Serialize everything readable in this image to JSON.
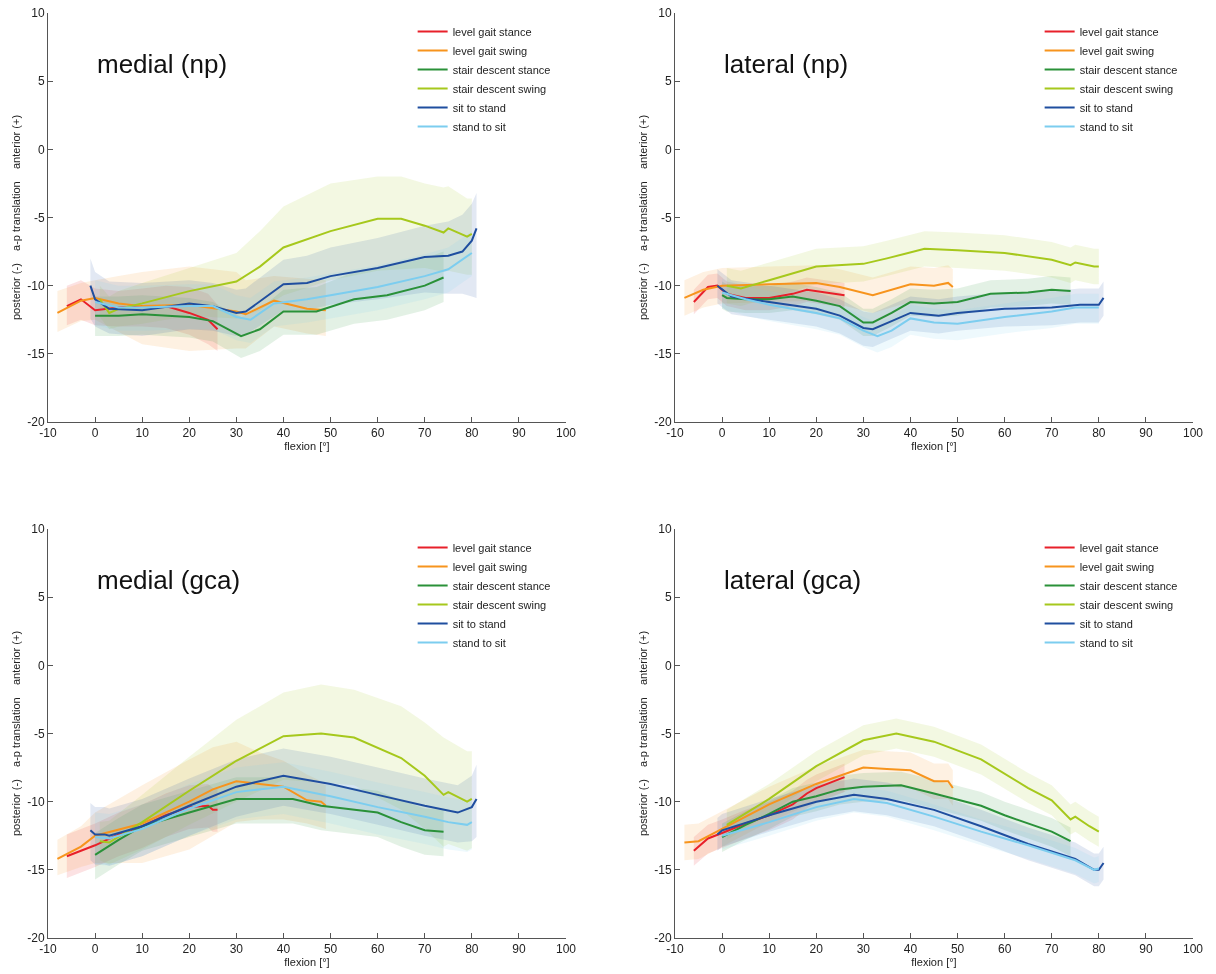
{
  "chart_data": [
    {
      "type": "line",
      "title": "medial (np)",
      "xlabel": "flexion [°]",
      "ylabel": "posterior (-)    a-p translation    anterior (+)",
      "xlim": [
        -10,
        100
      ],
      "xticks": [
        -10,
        0,
        10,
        20,
        30,
        40,
        50,
        60,
        70,
        80,
        90,
        100
      ],
      "ylim": [
        -20,
        10
      ],
      "yticks": [
        -20,
        -15,
        -10,
        -5,
        0,
        5,
        10
      ],
      "grid": false,
      "legend": "top right",
      "marker": "none",
      "line_style": "solid",
      "series": [
        {
          "name": "level gait stance",
          "color": "#e8202a",
          "x": [
            -6,
            -3,
            0,
            5,
            10,
            15,
            20,
            24,
            26
          ],
          "values": [
            -11.5,
            -11.0,
            -11.8,
            -11.6,
            -11.5,
            -11.5,
            -12.0,
            -12.5,
            -13.2
          ],
          "upper": [
            -10.0,
            -9.6,
            -10.2,
            -10.4,
            -10.2,
            -10.0,
            -10.1,
            -10.6,
            -11.4
          ],
          "lower": [
            -12.9,
            -12.5,
            -12.9,
            -13.0,
            -13.0,
            -13.1,
            -13.6,
            -14.3,
            -14.8
          ]
        },
        {
          "name": "level gait swing",
          "color": "#f7941d",
          "x": [
            -8,
            -3,
            0,
            5,
            10,
            20,
            30,
            32,
            38,
            45,
            49
          ],
          "values": [
            -12.0,
            -11.1,
            -10.9,
            -11.3,
            -11.5,
            -11.4,
            -11.9,
            -12.1,
            -11.1,
            -11.7,
            -11.8
          ],
          "upper": [
            -10.4,
            -9.8,
            -9.6,
            -9.3,
            -9.0,
            -8.6,
            -9.0,
            -9.6,
            -9.3,
            -9.5,
            -9.6
          ],
          "lower": [
            -13.4,
            -12.6,
            -12.5,
            -13.4,
            -14.3,
            -14.8,
            -14.6,
            -14.6,
            -13.0,
            -13.5,
            -13.7
          ]
        },
        {
          "name": "stair descent stance",
          "color": "#2a9139",
          "x": [
            0,
            5,
            10,
            20,
            25,
            31,
            35,
            40,
            47,
            55,
            62,
            70,
            74
          ],
          "values": [
            -12.2,
            -12.2,
            -12.1,
            -12.3,
            -12.6,
            -13.7,
            -13.2,
            -11.9,
            -11.9,
            -11.0,
            -10.7,
            -10.0,
            -9.4
          ],
          "upper": [
            -10.8,
            -10.8,
            -10.7,
            -10.9,
            -11.2,
            -12.3,
            -11.7,
            -10.3,
            -10.1,
            -9.0,
            -8.6,
            -8.0,
            -7.5
          ],
          "lower": [
            -13.7,
            -13.7,
            -13.6,
            -13.8,
            -14.1,
            -15.3,
            -14.8,
            -13.6,
            -13.6,
            -12.8,
            -12.5,
            -11.8,
            -11.2
          ]
        },
        {
          "name": "stair descent swing",
          "color": "#a6c81c",
          "x": [
            1,
            3,
            5,
            10,
            20,
            30,
            35,
            40,
            50,
            60,
            65,
            70,
            74,
            75,
            79,
            80
          ],
          "values": [
            -11.0,
            -12.0,
            -11.7,
            -11.3,
            -10.4,
            -9.7,
            -8.6,
            -7.2,
            -6.0,
            -5.1,
            -5.1,
            -5.6,
            -6.1,
            -5.8,
            -6.4,
            -6.2
          ],
          "upper": [
            -10.0,
            -10.8,
            -10.4,
            -9.8,
            -8.7,
            -7.6,
            -6.0,
            -4.2,
            -2.5,
            -2.0,
            -2.0,
            -2.5,
            -2.8,
            -2.7,
            -3.6,
            -3.6
          ],
          "lower": [
            -12.3,
            -13.2,
            -13.0,
            -12.8,
            -12.2,
            -12.4,
            -11.8,
            -10.7,
            -9.6,
            -8.9,
            -8.8,
            -8.7,
            -9.0,
            -8.9,
            -9.2,
            -9.2
          ]
        },
        {
          "name": "sit to stand",
          "color": "#1f4e9f",
          "x": [
            -1,
            0,
            3,
            10,
            20,
            25,
            30,
            32,
            40,
            45,
            50,
            60,
            70,
            75,
            78,
            80,
            81
          ],
          "values": [
            -10.0,
            -11.0,
            -11.7,
            -11.8,
            -11.3,
            -11.5,
            -12.0,
            -11.9,
            -9.9,
            -9.8,
            -9.3,
            -8.7,
            -7.9,
            -7.8,
            -7.5,
            -6.7,
            -5.8
          ],
          "upper": [
            -8.0,
            -9.0,
            -9.7,
            -9.8,
            -9.6,
            -9.8,
            -10.3,
            -10.2,
            -8.1,
            -7.8,
            -7.2,
            -6.5,
            -5.6,
            -5.3,
            -4.8,
            -4.0,
            -3.2
          ],
          "lower": [
            -12.4,
            -13.0,
            -13.5,
            -13.7,
            -13.2,
            -13.3,
            -13.7,
            -13.6,
            -11.8,
            -11.8,
            -11.4,
            -11.0,
            -10.5,
            -10.6,
            -10.6,
            -10.8,
            -10.9
          ]
        },
        {
          "name": "stand to sit",
          "color": "#7ccdef",
          "x": [
            0,
            5,
            10,
            20,
            25,
            30,
            33,
            38,
            45,
            50,
            60,
            70,
            75,
            80
          ],
          "values": [
            -11.2,
            -11.6,
            -11.6,
            -11.5,
            -11.5,
            -12.3,
            -12.5,
            -11.3,
            -11.0,
            -10.7,
            -10.1,
            -9.3,
            -8.8,
            -7.6
          ],
          "upper": [
            -9.6,
            -10.0,
            -10.0,
            -9.9,
            -9.9,
            -10.7,
            -10.9,
            -9.7,
            -9.4,
            -9.1,
            -8.5,
            -7.7,
            -7.2,
            -6.0
          ],
          "lower": [
            -12.9,
            -13.3,
            -13.3,
            -13.2,
            -13.2,
            -14.0,
            -14.2,
            -13.0,
            -12.7,
            -12.4,
            -11.8,
            -11.0,
            -10.5,
            -9.3
          ]
        }
      ]
    },
    {
      "type": "line",
      "title": "lateral (np)",
      "xlabel": "flexion [°]",
      "ylabel": "posterior (-)    a-p translation    anterior (+)",
      "xlim": [
        -10,
        100
      ],
      "xticks": [
        -10,
        0,
        10,
        20,
        30,
        40,
        50,
        60,
        70,
        80,
        90,
        100
      ],
      "ylim": [
        -20,
        10
      ],
      "yticks": [
        -20,
        -15,
        -10,
        -5,
        0,
        5,
        10
      ],
      "grid": false,
      "legend": "top right",
      "marker": "none",
      "line_style": "solid",
      "series": [
        {
          "name": "level gait stance",
          "color": "#e8202a",
          "x": [
            -6,
            -3,
            -1,
            1,
            5,
            10,
            15,
            18,
            22,
            26
          ],
          "values": [
            -11.2,
            -10.1,
            -10.0,
            -10.6,
            -10.9,
            -10.9,
            -10.6,
            -10.3,
            -10.5,
            -10.7
          ],
          "upper": [
            -10.3,
            -9.2,
            -9.1,
            -9.7,
            -10.0,
            -10.0,
            -9.7,
            -9.4,
            -9.6,
            -9.8
          ],
          "lower": [
            -12.1,
            -11.0,
            -10.9,
            -11.5,
            -11.8,
            -11.8,
            -11.5,
            -11.2,
            -11.4,
            -11.6
          ]
        },
        {
          "name": "level gait swing",
          "color": "#f7941d",
          "x": [
            -8,
            -4,
            0,
            10,
            20,
            25,
            32,
            40,
            45,
            48,
            49
          ],
          "values": [
            -10.9,
            -10.3,
            -10.0,
            -9.9,
            -9.8,
            -10.1,
            -10.7,
            -9.9,
            -10.0,
            -9.8,
            -10.1
          ],
          "upper": [
            -9.6,
            -9.0,
            -8.7,
            -8.6,
            -8.5,
            -8.8,
            -9.4,
            -8.6,
            -8.7,
            -8.5,
            -8.8
          ],
          "lower": [
            -12.2,
            -11.6,
            -11.3,
            -11.2,
            -11.1,
            -11.4,
            -12.0,
            -11.2,
            -11.3,
            -11.1,
            -11.4
          ]
        },
        {
          "name": "stair descent stance",
          "color": "#2a9139",
          "x": [
            0,
            1,
            5,
            10,
            15,
            20,
            25,
            30,
            32,
            36,
            40,
            45,
            50,
            57,
            65,
            70,
            74
          ],
          "values": [
            -10.7,
            -10.9,
            -11.0,
            -11.0,
            -10.8,
            -11.1,
            -11.5,
            -12.7,
            -12.7,
            -12.0,
            -11.2,
            -11.3,
            -11.2,
            -10.6,
            -10.5,
            -10.3,
            -10.4
          ],
          "upper": [
            -9.7,
            -9.9,
            -10.0,
            -10.0,
            -9.8,
            -10.1,
            -10.5,
            -11.7,
            -11.7,
            -11.0,
            -10.2,
            -10.3,
            -10.2,
            -9.6,
            -9.5,
            -9.3,
            -9.4
          ],
          "lower": [
            -11.7,
            -11.9,
            -12.0,
            -12.0,
            -11.8,
            -12.1,
            -12.5,
            -13.7,
            -13.7,
            -13.0,
            -12.2,
            -12.3,
            -12.2,
            -11.6,
            -11.5,
            -11.3,
            -11.4
          ]
        },
        {
          "name": "stair descent swing",
          "color": "#a6c81c",
          "x": [
            1,
            4,
            10,
            20,
            30,
            35,
            43,
            50,
            60,
            70,
            74,
            75,
            79,
            80
          ],
          "values": [
            -10.0,
            -10.2,
            -9.6,
            -8.6,
            -8.4,
            -8.0,
            -7.3,
            -7.4,
            -7.6,
            -8.1,
            -8.5,
            -8.3,
            -8.6,
            -8.6
          ],
          "upper": [
            -8.7,
            -8.9,
            -8.3,
            -7.3,
            -7.1,
            -6.7,
            -6.0,
            -6.1,
            -6.3,
            -6.8,
            -7.2,
            -7.0,
            -7.3,
            -7.3
          ],
          "lower": [
            -11.3,
            -11.5,
            -10.9,
            -9.9,
            -9.7,
            -9.3,
            -8.6,
            -8.7,
            -8.9,
            -9.4,
            -9.8,
            -9.6,
            -9.9,
            -9.9
          ]
        },
        {
          "name": "sit to stand",
          "color": "#1f4e9f",
          "x": [
            -1,
            2,
            10,
            20,
            25,
            30,
            32,
            36,
            40,
            46,
            50,
            60,
            70,
            76,
            80,
            81
          ],
          "values": [
            -10.0,
            -10.8,
            -11.2,
            -11.7,
            -12.2,
            -13.1,
            -13.2,
            -12.6,
            -12.0,
            -12.2,
            -12.0,
            -11.7,
            -11.6,
            -11.4,
            -11.4,
            -10.9
          ],
          "upper": [
            -8.8,
            -9.6,
            -10.0,
            -10.5,
            -11.0,
            -11.9,
            -12.0,
            -11.4,
            -10.8,
            -11.0,
            -10.8,
            -10.5,
            -10.4,
            -10.2,
            -10.2,
            -9.7
          ],
          "lower": [
            -11.3,
            -12.1,
            -12.5,
            -13.0,
            -13.5,
            -14.4,
            -14.5,
            -13.9,
            -13.3,
            -13.5,
            -13.3,
            -13.0,
            -12.9,
            -12.7,
            -12.7,
            -12.2
          ]
        },
        {
          "name": "stand to sit",
          "color": "#7ccdef",
          "x": [
            0,
            5,
            10,
            20,
            25,
            30,
            33,
            36,
            40,
            45,
            50,
            60,
            70,
            75,
            80
          ],
          "values": [
            -10.5,
            -11.0,
            -11.4,
            -12.0,
            -12.4,
            -13.3,
            -13.7,
            -13.3,
            -12.4,
            -12.7,
            -12.8,
            -12.3,
            -11.9,
            -11.6,
            -11.6
          ],
          "upper": [
            -9.5,
            -10.0,
            -10.4,
            -11.0,
            -11.4,
            -12.3,
            -12.7,
            -12.3,
            -11.4,
            -11.7,
            -11.8,
            -11.3,
            -10.9,
            -10.6,
            -10.6
          ],
          "lower": [
            -11.7,
            -12.2,
            -12.6,
            -13.2,
            -13.6,
            -14.5,
            -14.9,
            -14.5,
            -13.6,
            -13.9,
            -14.0,
            -13.5,
            -13.1,
            -12.8,
            -12.8
          ]
        }
      ]
    },
    {
      "type": "line",
      "title": "medial (gca)",
      "xlabel": "flexion [°]",
      "ylabel": "posterior (-)    a-p translation    anterior (+)",
      "xlim": [
        -10,
        100
      ],
      "xticks": [
        -10,
        0,
        10,
        20,
        30,
        40,
        50,
        60,
        70,
        80,
        90,
        100
      ],
      "ylim": [
        -20,
        10
      ],
      "yticks": [
        -20,
        -15,
        -10,
        -5,
        0,
        5,
        10
      ],
      "grid": false,
      "legend": "top right",
      "marker": "none",
      "line_style": "solid",
      "series": [
        {
          "name": "level gait stance",
          "color": "#e8202a",
          "x": [
            -6,
            -3,
            0,
            5,
            10,
            15,
            20,
            24,
            25,
            26
          ],
          "values": [
            -14.0,
            -13.6,
            -13.2,
            -12.4,
            -11.8,
            -11.0,
            -10.4,
            -10.3,
            -10.6,
            -10.6
          ],
          "upper": [
            -12.4,
            -12.0,
            -11.6,
            -10.8,
            -10.2,
            -9.4,
            -8.8,
            -8.7,
            -9.0,
            -9.0
          ],
          "lower": [
            -15.6,
            -15.2,
            -14.8,
            -14.0,
            -13.4,
            -12.6,
            -12.0,
            -11.9,
            -12.2,
            -12.2
          ]
        },
        {
          "name": "level gait swing",
          "color": "#f7941d",
          "x": [
            -8,
            -3,
            0,
            10,
            20,
            25,
            30,
            35,
            40,
            45,
            48,
            49
          ],
          "values": [
            -14.2,
            -13.3,
            -12.5,
            -11.6,
            -10.0,
            -9.1,
            -8.5,
            -8.7,
            -8.9,
            -9.9,
            -10.0,
            -10.3
          ],
          "upper": [
            -12.8,
            -11.8,
            -10.8,
            -8.8,
            -6.9,
            -6.0,
            -5.6,
            -6.4,
            -7.0,
            -8.0,
            -8.5,
            -8.8
          ],
          "lower": [
            -15.4,
            -14.8,
            -14.5,
            -14.5,
            -13.5,
            -12.5,
            -11.5,
            -11.3,
            -11.3,
            -11.6,
            -11.9,
            -12.0
          ]
        },
        {
          "name": "stair descent stance",
          "color": "#2a9139",
          "x": [
            0,
            5,
            10,
            20,
            30,
            35,
            42,
            48,
            60,
            65,
            70,
            74
          ],
          "values": [
            -13.9,
            -12.8,
            -11.8,
            -10.8,
            -9.8,
            -9.8,
            -9.8,
            -10.3,
            -10.8,
            -11.5,
            -12.1,
            -12.2
          ],
          "upper": [
            -12.3,
            -11.2,
            -10.2,
            -9.2,
            -8.2,
            -8.2,
            -8.2,
            -8.7,
            -9.2,
            -9.9,
            -10.5,
            -10.6
          ],
          "lower": [
            -15.7,
            -14.6,
            -13.6,
            -12.6,
            -11.6,
            -11.6,
            -11.6,
            -12.1,
            -12.6,
            -13.3,
            -13.9,
            -14.0
          ]
        },
        {
          "name": "stair descent swing",
          "color": "#a6c81c",
          "x": [
            1,
            3,
            10,
            20,
            30,
            40,
            48,
            55,
            65,
            70,
            74,
            75,
            79,
            80
          ],
          "values": [
            -12.9,
            -13.0,
            -11.5,
            -9.2,
            -7.0,
            -5.2,
            -5.0,
            -5.3,
            -6.8,
            -8.1,
            -9.5,
            -9.3,
            -10.0,
            -9.8
          ],
          "upper": [
            -11.5,
            -11.4,
            -9.5,
            -6.7,
            -4.0,
            -2.0,
            -1.4,
            -1.8,
            -3.0,
            -4.2,
            -5.3,
            -5.5,
            -6.3,
            -6.3
          ],
          "lower": [
            -14.3,
            -14.6,
            -13.5,
            -11.7,
            -10.0,
            -8.4,
            -8.6,
            -8.8,
            -10.6,
            -12.0,
            -13.3,
            -13.1,
            -13.6,
            -13.4
          ]
        },
        {
          "name": "sit to stand",
          "color": "#1f4e9f",
          "x": [
            -1,
            0,
            2,
            3,
            10,
            20,
            30,
            40,
            50,
            60,
            70,
            77,
            80,
            81
          ],
          "values": [
            -12.1,
            -12.4,
            -12.4,
            -12.5,
            -11.8,
            -10.3,
            -8.9,
            -8.1,
            -8.7,
            -9.5,
            -10.3,
            -10.8,
            -10.4,
            -9.8
          ],
          "upper": [
            -10.1,
            -10.4,
            -10.4,
            -10.5,
            -9.8,
            -8.3,
            -6.9,
            -6.1,
            -6.7,
            -7.5,
            -8.3,
            -8.8,
            -8.1,
            -7.3
          ],
          "lower": [
            -14.3,
            -14.6,
            -14.6,
            -14.7,
            -14.0,
            -12.5,
            -11.1,
            -10.3,
            -10.9,
            -11.7,
            -12.5,
            -13.0,
            -12.9,
            -12.6
          ]
        },
        {
          "name": "stand to sit",
          "color": "#7ccdef",
          "x": [
            0,
            3,
            10,
            20,
            30,
            40,
            50,
            60,
            70,
            75,
            79,
            80
          ],
          "values": [
            -12.6,
            -12.7,
            -12.0,
            -10.5,
            -9.3,
            -8.9,
            -9.6,
            -10.4,
            -11.1,
            -11.5,
            -11.7,
            -11.5
          ],
          "upper": [
            -10.8,
            -10.9,
            -10.2,
            -8.7,
            -7.5,
            -7.1,
            -7.8,
            -8.6,
            -9.3,
            -9.7,
            -9.9,
            -9.7
          ],
          "lower": [
            -14.6,
            -14.7,
            -14.0,
            -12.5,
            -11.3,
            -10.9,
            -11.6,
            -12.4,
            -13.1,
            -13.5,
            -13.7,
            -13.5
          ]
        }
      ]
    },
    {
      "type": "line",
      "title": "lateral (gca)",
      "xlabel": "flexion [°]",
      "ylabel": "posterior (-)    a-p translation    anterior (+)",
      "xlim": [
        -10,
        100
      ],
      "xticks": [
        -10,
        0,
        10,
        20,
        30,
        40,
        50,
        60,
        70,
        80,
        90,
        100
      ],
      "ylim": [
        -20,
        10
      ],
      "yticks": [
        -20,
        -15,
        -10,
        -5,
        0,
        5,
        10
      ],
      "grid": false,
      "legend": "top right",
      "marker": "none",
      "line_style": "solid",
      "series": [
        {
          "name": "level gait stance",
          "color": "#e8202a",
          "x": [
            -6,
            -3,
            0,
            5,
            10,
            15,
            18,
            20,
            26
          ],
          "values": [
            -13.6,
            -12.7,
            -12.3,
            -11.6,
            -11.0,
            -10.2,
            -9.4,
            -9.0,
            -8.2
          ],
          "upper": [
            -12.6,
            -11.7,
            -11.3,
            -10.6,
            -10.0,
            -9.2,
            -8.4,
            -8.0,
            -7.2
          ],
          "lower": [
            -14.7,
            -13.8,
            -13.4,
            -12.7,
            -12.1,
            -11.3,
            -10.5,
            -10.1,
            -9.3
          ]
        },
        {
          "name": "level gait swing",
          "color": "#f7941d",
          "x": [
            -8,
            -5,
            0,
            10,
            20,
            30,
            35,
            40,
            45,
            48,
            49
          ],
          "values": [
            -13.0,
            -12.9,
            -12.0,
            -10.2,
            -8.7,
            -7.5,
            -7.6,
            -7.7,
            -8.5,
            -8.5,
            -9.0
          ],
          "upper": [
            -11.7,
            -11.6,
            -10.7,
            -8.9,
            -7.4,
            -6.2,
            -6.3,
            -6.4,
            -7.2,
            -7.2,
            -7.7
          ],
          "lower": [
            -14.3,
            -14.2,
            -13.3,
            -11.5,
            -10.0,
            -8.8,
            -8.9,
            -9.0,
            -9.8,
            -9.8,
            -10.3
          ]
        },
        {
          "name": "stair descent stance",
          "color": "#2a9139",
          "x": [
            0,
            5,
            10,
            15,
            20,
            25,
            30,
            38,
            45,
            55,
            60,
            70,
            74
          ],
          "values": [
            -12.6,
            -11.7,
            -10.9,
            -10.0,
            -9.6,
            -9.1,
            -8.9,
            -8.8,
            -9.4,
            -10.3,
            -11.0,
            -12.2,
            -12.9
          ],
          "upper": [
            -11.6,
            -10.7,
            -9.9,
            -9.0,
            -8.6,
            -8.1,
            -7.9,
            -7.8,
            -8.4,
            -9.3,
            -10.0,
            -11.2,
            -11.9
          ],
          "lower": [
            -13.7,
            -12.8,
            -12.0,
            -11.1,
            -10.7,
            -10.2,
            -10.0,
            -9.9,
            -10.5,
            -11.4,
            -12.1,
            -13.3,
            -14.0
          ]
        },
        {
          "name": "stair descent swing",
          "color": "#a6c81c",
          "x": [
            1,
            10,
            20,
            30,
            37,
            45,
            55,
            65,
            70,
            74,
            75,
            78,
            80
          ],
          "values": [
            -11.7,
            -9.8,
            -7.4,
            -5.5,
            -5.0,
            -5.6,
            -6.9,
            -9.0,
            -9.9,
            -11.3,
            -11.1,
            -11.8,
            -12.2
          ],
          "upper": [
            -10.6,
            -8.7,
            -6.3,
            -4.4,
            -3.9,
            -4.5,
            -5.8,
            -7.9,
            -8.8,
            -10.2,
            -10.0,
            -10.7,
            -11.1
          ],
          "lower": [
            -12.8,
            -10.9,
            -8.5,
            -6.6,
            -6.1,
            -6.7,
            -8.0,
            -10.1,
            -11.0,
            -12.4,
            -12.2,
            -12.9,
            -13.3
          ]
        },
        {
          "name": "sit to stand",
          "color": "#1f4e9f",
          "x": [
            -1,
            0,
            10,
            20,
            28,
            35,
            45,
            55,
            65,
            75,
            79,
            80,
            81
          ],
          "values": [
            -12.4,
            -12.1,
            -11.0,
            -10.0,
            -9.5,
            -9.8,
            -10.6,
            -11.8,
            -13.1,
            -14.2,
            -15.0,
            -15.0,
            -14.5
          ],
          "upper": [
            -11.2,
            -10.9,
            -9.8,
            -8.8,
            -8.3,
            -8.6,
            -9.4,
            -10.6,
            -11.9,
            -13.0,
            -13.8,
            -13.8,
            -13.3
          ],
          "lower": [
            -13.6,
            -13.3,
            -12.2,
            -11.2,
            -10.7,
            -11.0,
            -11.8,
            -13.0,
            -14.3,
            -15.4,
            -16.2,
            -16.2,
            -15.7
          ]
        },
        {
          "name": "stand to sit",
          "color": "#7ccdef",
          "x": [
            0,
            10,
            20,
            28,
            35,
            45,
            55,
            65,
            75,
            79,
            80
          ],
          "values": [
            -12.5,
            -11.5,
            -10.4,
            -9.8,
            -10.1,
            -11.1,
            -12.2,
            -13.2,
            -14.3,
            -15.0,
            -14.9
          ],
          "upper": [
            -11.6,
            -10.6,
            -9.5,
            -8.9,
            -9.2,
            -10.2,
            -11.3,
            -12.3,
            -13.4,
            -14.1,
            -14.0
          ],
          "lower": [
            -13.5,
            -12.5,
            -11.4,
            -10.8,
            -11.1,
            -12.1,
            -13.2,
            -14.2,
            -15.3,
            -16.0,
            -15.9
          ]
        }
      ]
    }
  ]
}
